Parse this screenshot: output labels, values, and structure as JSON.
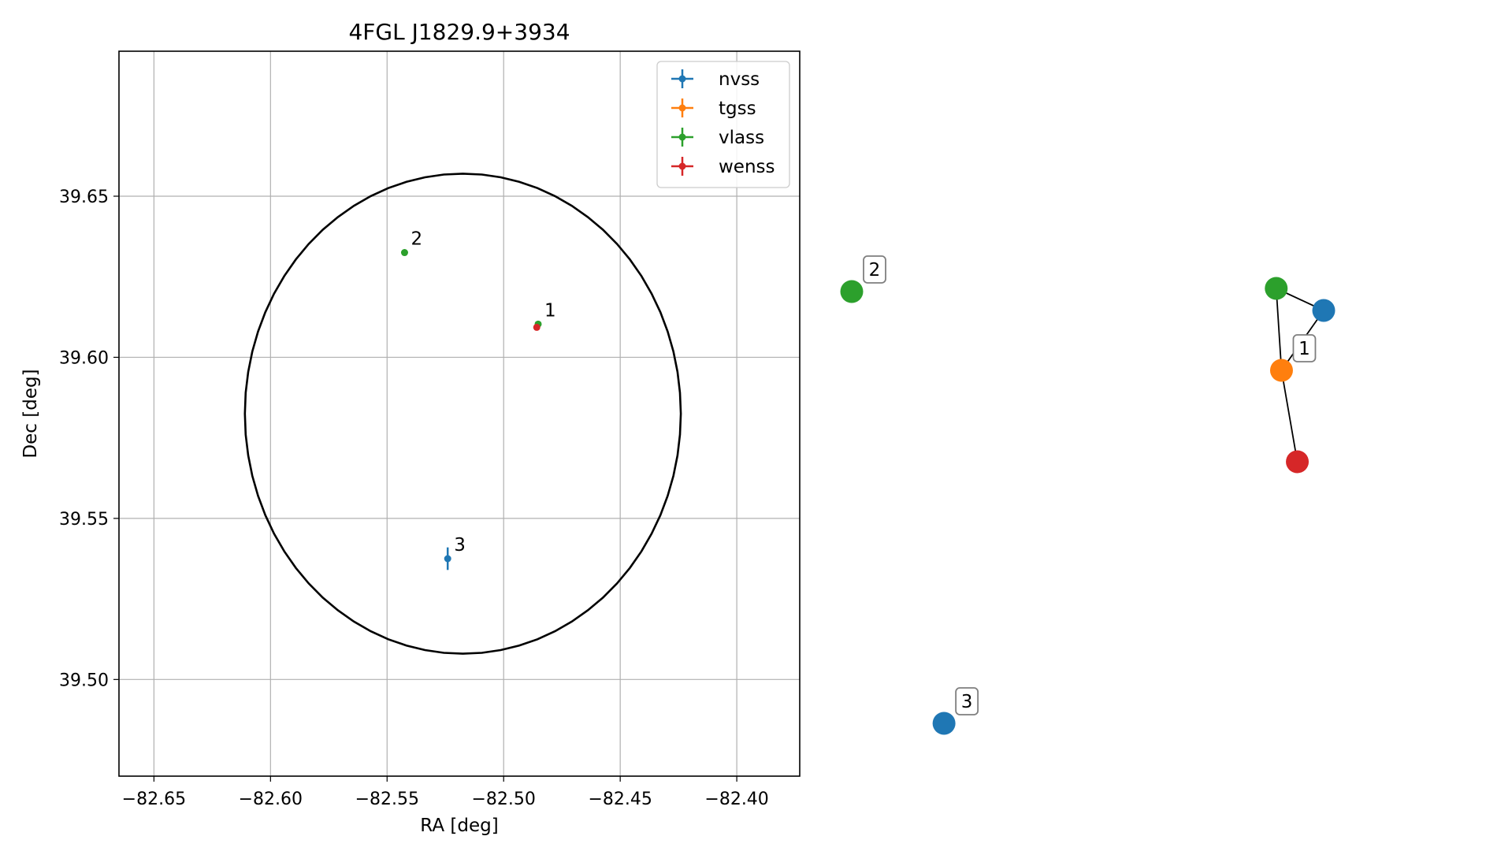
{
  "chart_data": [
    {
      "type": "scatter",
      "title": "4FGL J1829.9+3934",
      "xlabel": "RA [deg]",
      "ylabel": "Dec [deg]",
      "xlim": [
        -82.665,
        -82.373
      ],
      "ylim": [
        39.47,
        39.695
      ],
      "xticks": [
        -82.65,
        -82.6,
        -82.55,
        -82.5,
        -82.45,
        -82.4
      ],
      "xtick_labels": [
        "−82.65",
        "−82.60",
        "−82.55",
        "−82.50",
        "−82.45",
        "−82.40"
      ],
      "yticks": [
        39.5,
        39.55,
        39.6,
        39.65
      ],
      "ytick_labels": [
        "39.50",
        "39.55",
        "39.60",
        "39.65"
      ],
      "grid": true,
      "legend_position": "top-right",
      "region": {
        "shape": "ellipse",
        "center_ra": -82.5175,
        "center_dec": 39.5825,
        "radius_ra": 0.0935,
        "radius_dec": 0.0745,
        "color": "#000000"
      },
      "series": [
        {
          "name": "nvss",
          "color": "#1f77b4",
          "points": [
            {
              "ra": -82.524,
              "dec": 39.5375,
              "ra_err": 0.0008,
              "dec_err": 0.0035,
              "label": "3"
            }
          ]
        },
        {
          "name": "tgss",
          "color": "#ff7f0e",
          "points": []
        },
        {
          "name": "vlass",
          "color": "#2ca02c",
          "points": [
            {
              "ra": -82.5425,
              "dec": 39.6325,
              "ra_err": 0.0002,
              "dec_err": 0.0002,
              "label": "2"
            },
            {
              "ra": -82.4852,
              "dec": 39.6103,
              "ra_err": 0.0002,
              "dec_err": 0.0002,
              "label": "1"
            }
          ]
        },
        {
          "name": "wenss",
          "color": "#d62728",
          "points": [
            {
              "ra": -82.4858,
              "dec": 39.6093,
              "ra_err": 0.0006,
              "dec_err": 0.0008,
              "label": ""
            }
          ]
        }
      ]
    },
    {
      "type": "network",
      "nodes": [
        {
          "id": "vlass-2",
          "group": "vlass",
          "color": "#2ca02c",
          "x": -0.05,
          "y": 0.44,
          "label": "2"
        },
        {
          "id": "nvss-3",
          "group": "nvss",
          "color": "#1f77b4",
          "x": 0.3,
          "y": -0.93,
          "label": "3"
        },
        {
          "id": "vlass-1",
          "group": "vlass",
          "color": "#2ca02c",
          "x": 1.56,
          "y": 0.45,
          "label": ""
        },
        {
          "id": "nvss-1",
          "group": "nvss",
          "color": "#1f77b4",
          "x": 1.74,
          "y": 0.38,
          "label": ""
        },
        {
          "id": "tgss-1",
          "group": "tgss",
          "color": "#ff7f0e",
          "x": 1.58,
          "y": 0.19,
          "label": "1"
        },
        {
          "id": "wenss-1",
          "group": "wenss",
          "color": "#d62728",
          "x": 1.64,
          "y": -0.1,
          "label": ""
        }
      ],
      "edges": [
        [
          "vlass-1",
          "nvss-1"
        ],
        [
          "vlass-1",
          "tgss-1"
        ],
        [
          "nvss-1",
          "tgss-1"
        ],
        [
          "tgss-1",
          "wenss-1"
        ]
      ]
    }
  ]
}
